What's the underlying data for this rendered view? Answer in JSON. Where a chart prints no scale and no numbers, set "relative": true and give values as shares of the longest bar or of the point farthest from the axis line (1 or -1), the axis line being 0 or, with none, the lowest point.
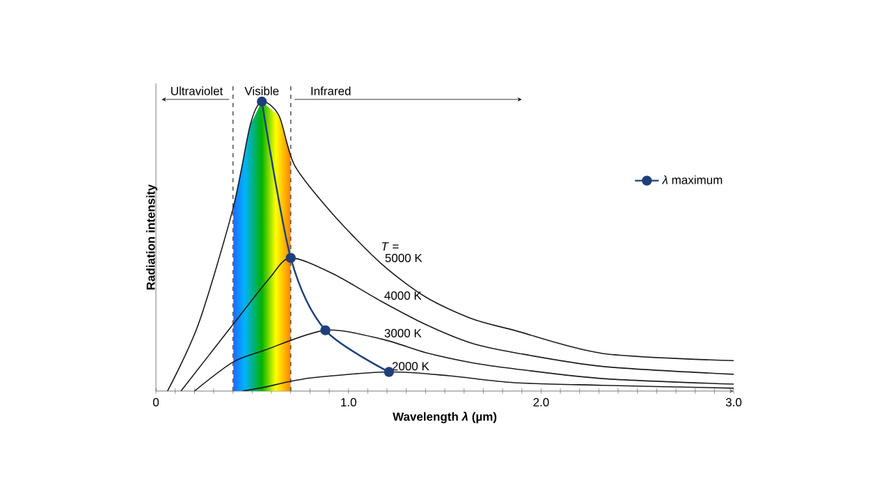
{
  "chart_data": {
    "type": "line",
    "relative": true,
    "xlabel": "Wavelength *λ* (µm)",
    "ylabel": "Radiation intensity",
    "xlim": [
      0,
      3.0
    ],
    "xticks": [
      0,
      {
        "value": 0.1,
        "label": null
      },
      {
        "value": 0.2,
        "label": null
      },
      {
        "value": 0.3,
        "label": null
      },
      {
        "value": 0.4,
        "label": null
      },
      {
        "value": 0.5,
        "label": null
      },
      {
        "value": 0.6,
        "label": null
      },
      {
        "value": 0.7,
        "label": null
      },
      {
        "value": 0.8,
        "label": null
      },
      {
        "value": 0.9,
        "label": null
      },
      {
        "value": 1.0,
        "label": "1.0"
      },
      {
        "value": 1.1,
        "label": null
      },
      {
        "value": 1.2,
        "label": null
      },
      {
        "value": 1.3,
        "label": null
      },
      {
        "value": 1.4,
        "label": null
      },
      {
        "value": 1.5,
        "label": null
      },
      {
        "value": 1.6,
        "label": null
      },
      {
        "value": 1.7,
        "label": null
      },
      {
        "value": 1.8,
        "label": null
      },
      {
        "value": 1.9,
        "label": null
      },
      {
        "value": 2.0,
        "label": "2.0"
      },
      {
        "value": 2.1,
        "label": null
      },
      {
        "value": 2.2,
        "label": null
      },
      {
        "value": 2.3,
        "label": null
      },
      {
        "value": 2.4,
        "label": null
      },
      {
        "value": 2.5,
        "label": null
      },
      {
        "value": 2.6,
        "label": null
      },
      {
        "value": 2.7,
        "label": null
      },
      {
        "value": 2.8,
        "label": null
      },
      {
        "value": 2.9,
        "label": null
      },
      {
        "value": 3.0,
        "label": "3.0"
      }
    ],
    "legend": "right",
    "series": [
      {
        "name": "5000 K",
        "color": "#1a1a1a",
        "x": [
          0.06,
          0.22,
          0.4,
          0.49,
          0.55,
          0.64,
          0.72,
          0.92,
          1.17,
          1.4,
          1.64,
          1.86,
          2.32,
          3.0
        ],
        "values": [
          0,
          0.23,
          0.63,
          0.92,
          1.0,
          0.95,
          0.78,
          0.61,
          0.44,
          0.325,
          0.25,
          0.21,
          0.13,
          0.105
        ]
      },
      {
        "name": "4000 K",
        "color": "#1a1a1a",
        "x": [
          0.13,
          0.4,
          0.59,
          0.7,
          0.92,
          1.17,
          1.4,
          1.64,
          1.86,
          2.32,
          3.0
        ],
        "values": [
          0,
          0.23,
          0.39,
          0.46,
          0.405,
          0.31,
          0.23,
          0.165,
          0.133,
          0.085,
          0.058
        ]
      },
      {
        "name": "3000 K",
        "color": "#1a1a1a",
        "x": [
          0.2,
          0.4,
          0.56,
          0.88,
          1.17,
          1.4,
          1.64,
          1.86,
          2.32,
          3.0
        ],
        "values": [
          0,
          0.1,
          0.14,
          0.21,
          0.18,
          0.133,
          0.098,
          0.077,
          0.043,
          0.024
        ]
      },
      {
        "name": "2000 K",
        "color": "#1a1a1a",
        "x": [
          0.45,
          0.56,
          0.8,
          1.21,
          1.52,
          1.86,
          2.32,
          3.0
        ],
        "values": [
          0,
          0.013,
          0.045,
          0.066,
          0.053,
          0.029,
          0.02,
          0.01
        ]
      },
      {
        "name": "*λ* maximum",
        "color": "#1f3f78",
        "marker": "circle",
        "x": [
          0.55,
          0.7,
          0.88,
          1.21
        ],
        "values": [
          1.0,
          0.46,
          0.21,
          0.066
        ]
      }
    ],
    "ref_lines": [
      {
        "axis": "x",
        "value": 0.4,
        "label": "Ultraviolet",
        "line_style": "dashed",
        "color": "#555555"
      },
      {
        "axis": "x",
        "value": 0.7,
        "label": "Infrared",
        "line_style": "dashed",
        "color": "#555555"
      }
    ],
    "bands": [
      {
        "axis": "x",
        "from": 0.4,
        "to": 0.7,
        "label": "Visible"
      }
    ],
    "annotations": [
      "*T* ="
    ]
  }
}
